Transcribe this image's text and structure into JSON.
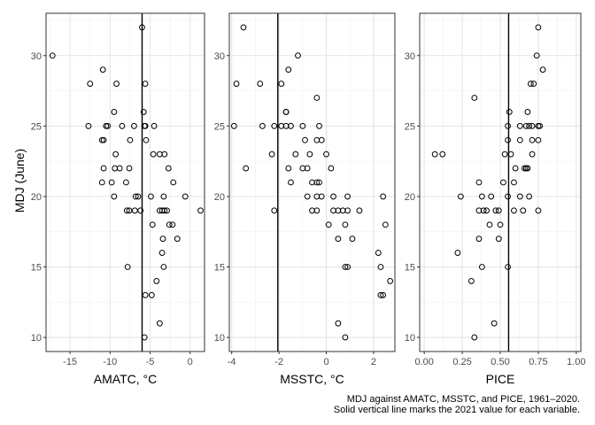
{
  "caption": {
    "line1": "MDJ against AMATC, MSSTC, and PICE, 1961–2020.",
    "line2": "Solid vertical line marks the 2021 value for each variable."
  },
  "shared_ylabel": "MDJ (June)",
  "chart_data": [
    {
      "type": "scatter",
      "xlabel": "AMATC, °C",
      "ylabel": "MDJ (June)",
      "xlim": [
        -18,
        1.8
      ],
      "ylim": [
        9,
        33
      ],
      "xticks": [
        -15,
        -10,
        -5,
        0
      ],
      "xtick_labels": [
        "-15",
        "-10",
        "-5",
        "0"
      ],
      "yticks": [
        10,
        15,
        20,
        25,
        30
      ],
      "ytick_labels": [
        "10",
        "15",
        "20",
        "25",
        "30"
      ],
      "grid": true,
      "vline": -6.0,
      "points": [
        [
          -17.2,
          30
        ],
        [
          -12.5,
          28
        ],
        [
          -10.9,
          29
        ],
        [
          -9.2,
          28
        ],
        [
          -9.5,
          26
        ],
        [
          -12.7,
          25
        ],
        [
          -10.5,
          25
        ],
        [
          -10.3,
          25
        ],
        [
          -8.5,
          25
        ],
        [
          -7,
          25
        ],
        [
          -5.7,
          25
        ],
        [
          -5.6,
          25
        ],
        [
          -11,
          24
        ],
        [
          -10.8,
          24
        ],
        [
          -7.5,
          24
        ],
        [
          -9.3,
          23
        ],
        [
          -10.8,
          22
        ],
        [
          -9.4,
          22
        ],
        [
          -8.8,
          22
        ],
        [
          -7.6,
          22
        ],
        [
          -11,
          21
        ],
        [
          -9.8,
          21
        ],
        [
          -8,
          21
        ],
        [
          -9.5,
          20
        ],
        [
          -6.8,
          20
        ],
        [
          -6.5,
          20
        ],
        [
          -4.9,
          20
        ],
        [
          -3.3,
          20
        ],
        [
          -0.6,
          20
        ],
        [
          -7.9,
          19
        ],
        [
          -7.6,
          19
        ],
        [
          -6.9,
          19
        ],
        [
          -6.2,
          19
        ],
        [
          -3.8,
          19
        ],
        [
          -3.5,
          19
        ],
        [
          -3.2,
          19
        ],
        [
          -2.9,
          19
        ],
        [
          1.3,
          19
        ],
        [
          -4.7,
          18
        ],
        [
          -2.6,
          18
        ],
        [
          -2.2,
          18
        ],
        [
          -3.4,
          17
        ],
        [
          -1.6,
          17
        ],
        [
          -3.5,
          16
        ],
        [
          -7.8,
          15
        ],
        [
          -3.3,
          15
        ],
        [
          -4.2,
          14
        ],
        [
          -5.6,
          13
        ],
        [
          -4.8,
          13
        ],
        [
          -3.8,
          11
        ],
        [
          -5.7,
          10
        ],
        [
          -6.0,
          32
        ],
        [
          -5.6,
          28
        ],
        [
          -5.8,
          26
        ],
        [
          -4.5,
          25
        ],
        [
          -5.5,
          24
        ],
        [
          -4.6,
          23
        ],
        [
          -3.8,
          23
        ],
        [
          -3.2,
          23
        ],
        [
          -2.7,
          22
        ],
        [
          -2.1,
          21
        ]
      ]
    },
    {
      "type": "scatter",
      "xlabel": "MSSTC, °C",
      "ylabel": "MDJ (June)",
      "xlim": [
        -4.1,
        2.9
      ],
      "ylim": [
        9,
        33
      ],
      "xticks": [
        -4,
        -2,
        0,
        2
      ],
      "xtick_labels": [
        "-4",
        "-2",
        "0",
        "2"
      ],
      "yticks": [
        10,
        15,
        20,
        25,
        30
      ],
      "ytick_labels": [
        "10",
        "15",
        "20",
        "25",
        "30"
      ],
      "grid": true,
      "vline": -2.05,
      "points": [
        [
          -3.5,
          32
        ],
        [
          -1.2,
          30
        ],
        [
          -1.6,
          29
        ],
        [
          -3.8,
          28
        ],
        [
          -2.8,
          28
        ],
        [
          -1.9,
          28
        ],
        [
          -0.4,
          27
        ],
        [
          -1.7,
          26
        ],
        [
          -1.7,
          26
        ],
        [
          -3.9,
          25
        ],
        [
          -2.7,
          25
        ],
        [
          -2.2,
          25
        ],
        [
          -1.9,
          25
        ],
        [
          -1.7,
          25
        ],
        [
          -1.5,
          25
        ],
        [
          -1,
          25
        ],
        [
          -0.3,
          25
        ],
        [
          -0.9,
          24
        ],
        [
          -0.4,
          24
        ],
        [
          -0.2,
          24
        ],
        [
          -2.3,
          23
        ],
        [
          -1.3,
          23
        ],
        [
          -0.7,
          23
        ],
        [
          0,
          23
        ],
        [
          -3.4,
          22
        ],
        [
          -1.6,
          22
        ],
        [
          -1,
          22
        ],
        [
          -0.8,
          22
        ],
        [
          0.2,
          22
        ],
        [
          -1.5,
          21
        ],
        [
          -0.6,
          21
        ],
        [
          -0.4,
          21
        ],
        [
          -0.3,
          21
        ],
        [
          -0.8,
          20
        ],
        [
          -0.4,
          20
        ],
        [
          -0.2,
          20
        ],
        [
          0.3,
          20
        ],
        [
          0.9,
          20
        ],
        [
          2.4,
          20
        ],
        [
          -2.2,
          19
        ],
        [
          -0.6,
          19
        ],
        [
          -0.4,
          19
        ],
        [
          0.3,
          19
        ],
        [
          0.5,
          19
        ],
        [
          0.7,
          19
        ],
        [
          0.9,
          19
        ],
        [
          1.4,
          19
        ],
        [
          0.1,
          18
        ],
        [
          0.8,
          18
        ],
        [
          2.5,
          18
        ],
        [
          0.5,
          17
        ],
        [
          1.1,
          17
        ],
        [
          2.2,
          16
        ],
        [
          0.8,
          15
        ],
        [
          0.9,
          15
        ],
        [
          2.3,
          15
        ],
        [
          2.7,
          14
        ],
        [
          2.3,
          13
        ],
        [
          2.4,
          13
        ],
        [
          0.5,
          11
        ],
        [
          0.8,
          10
        ]
      ]
    },
    {
      "type": "scatter",
      "xlabel": "PICE",
      "ylabel": "MDJ (June)",
      "xlim": [
        -0.03,
        1.03
      ],
      "ylim": [
        9,
        33
      ],
      "xticks": [
        0.0,
        0.25,
        0.5,
        0.75,
        1.0
      ],
      "xtick_labels": [
        "0.00",
        "0.25",
        "0.50",
        "0.75",
        "1.00"
      ],
      "yticks": [
        10,
        15,
        20,
        25,
        30
      ],
      "ytick_labels": [
        "10",
        "15",
        "20",
        "25",
        "30"
      ],
      "grid": true,
      "vline": 0.555,
      "points": [
        [
          0.75,
          32
        ],
        [
          0.74,
          30
        ],
        [
          0.78,
          29
        ],
        [
          0.7,
          28
        ],
        [
          0.72,
          28
        ],
        [
          0.33,
          27
        ],
        [
          0.56,
          26
        ],
        [
          0.68,
          26
        ],
        [
          0.55,
          25
        ],
        [
          0.63,
          25
        ],
        [
          0.67,
          25
        ],
        [
          0.69,
          25
        ],
        [
          0.71,
          25
        ],
        [
          0.75,
          25
        ],
        [
          0.76,
          25
        ],
        [
          0.55,
          24
        ],
        [
          0.63,
          24
        ],
        [
          0.71,
          24
        ],
        [
          0.75,
          24
        ],
        [
          0.07,
          23
        ],
        [
          0.12,
          23
        ],
        [
          0.53,
          23
        ],
        [
          0.57,
          23
        ],
        [
          0.71,
          23
        ],
        [
          0.6,
          22
        ],
        [
          0.66,
          22
        ],
        [
          0.67,
          22
        ],
        [
          0.68,
          22
        ],
        [
          0.59,
          21
        ],
        [
          0.36,
          21
        ],
        [
          0.52,
          21
        ],
        [
          0.24,
          20
        ],
        [
          0.38,
          20
        ],
        [
          0.44,
          20
        ],
        [
          0.55,
          20
        ],
        [
          0.63,
          20
        ],
        [
          0.69,
          20
        ],
        [
          0.36,
          19
        ],
        [
          0.39,
          19
        ],
        [
          0.41,
          19
        ],
        [
          0.47,
          19
        ],
        [
          0.49,
          19
        ],
        [
          0.59,
          19
        ],
        [
          0.65,
          19
        ],
        [
          0.75,
          19
        ],
        [
          0.43,
          18
        ],
        [
          0.5,
          18
        ],
        [
          0.36,
          17
        ],
        [
          0.49,
          17
        ],
        [
          0.22,
          16
        ],
        [
          0.38,
          15
        ],
        [
          0.55,
          15
        ],
        [
          0.31,
          14
        ],
        [
          0.46,
          11
        ],
        [
          0.33,
          10
        ]
      ]
    }
  ]
}
